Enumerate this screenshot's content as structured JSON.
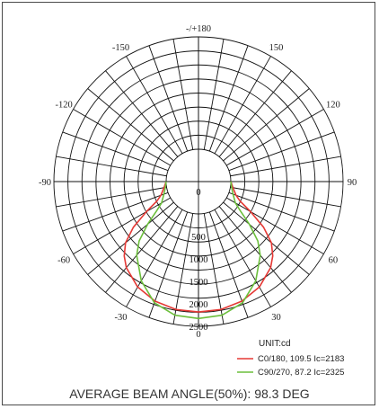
{
  "chart_data": {
    "type": "polar",
    "radial_axis": {
      "unit_label": "UNIT:cd",
      "ticks": [
        0,
        500,
        1000,
        1500,
        2000,
        2500
      ],
      "range": [
        0,
        2500
      ]
    },
    "angle_axis": {
      "labels": [
        "-/+180",
        "150",
        "120",
        "90",
        "60",
        "30",
        "0",
        "-30",
        "-60",
        "-90",
        "-120",
        "-150"
      ]
    },
    "series": [
      {
        "name": "C0/180, 109.5 Ic=2183",
        "color": "#e53935",
        "angles": [
          -90,
          -80,
          -70,
          -65,
          -60,
          -55,
          -50,
          -45,
          -40,
          -30,
          -20,
          -10,
          0,
          10,
          20,
          30,
          40,
          45,
          50,
          55,
          60,
          65,
          70,
          80,
          90
        ],
        "values": [
          0,
          60,
          170,
          300,
          620,
          1050,
          1400,
          1620,
          1780,
          1990,
          2110,
          2170,
          2183,
          2170,
          2110,
          1990,
          1780,
          1620,
          1400,
          1050,
          620,
          300,
          170,
          60,
          0
        ]
      },
      {
        "name": "C90/270, 87.2 Ic=2325",
        "color": "#6cbf3c",
        "angles": [
          -90,
          -80,
          -70,
          -60,
          -55,
          -50,
          -45,
          -40,
          -30,
          -20,
          -10,
          0,
          10,
          20,
          30,
          40,
          45,
          50,
          55,
          60,
          70,
          80,
          90
        ],
        "values": [
          0,
          30,
          100,
          230,
          420,
          760,
          1150,
          1420,
          1830,
          2150,
          2300,
          2325,
          2300,
          2150,
          1830,
          1420,
          1150,
          760,
          420,
          230,
          100,
          30,
          0
        ]
      }
    ]
  },
  "caption": "AVERAGE BEAM ANGLE(50%): 98.3 DEG"
}
